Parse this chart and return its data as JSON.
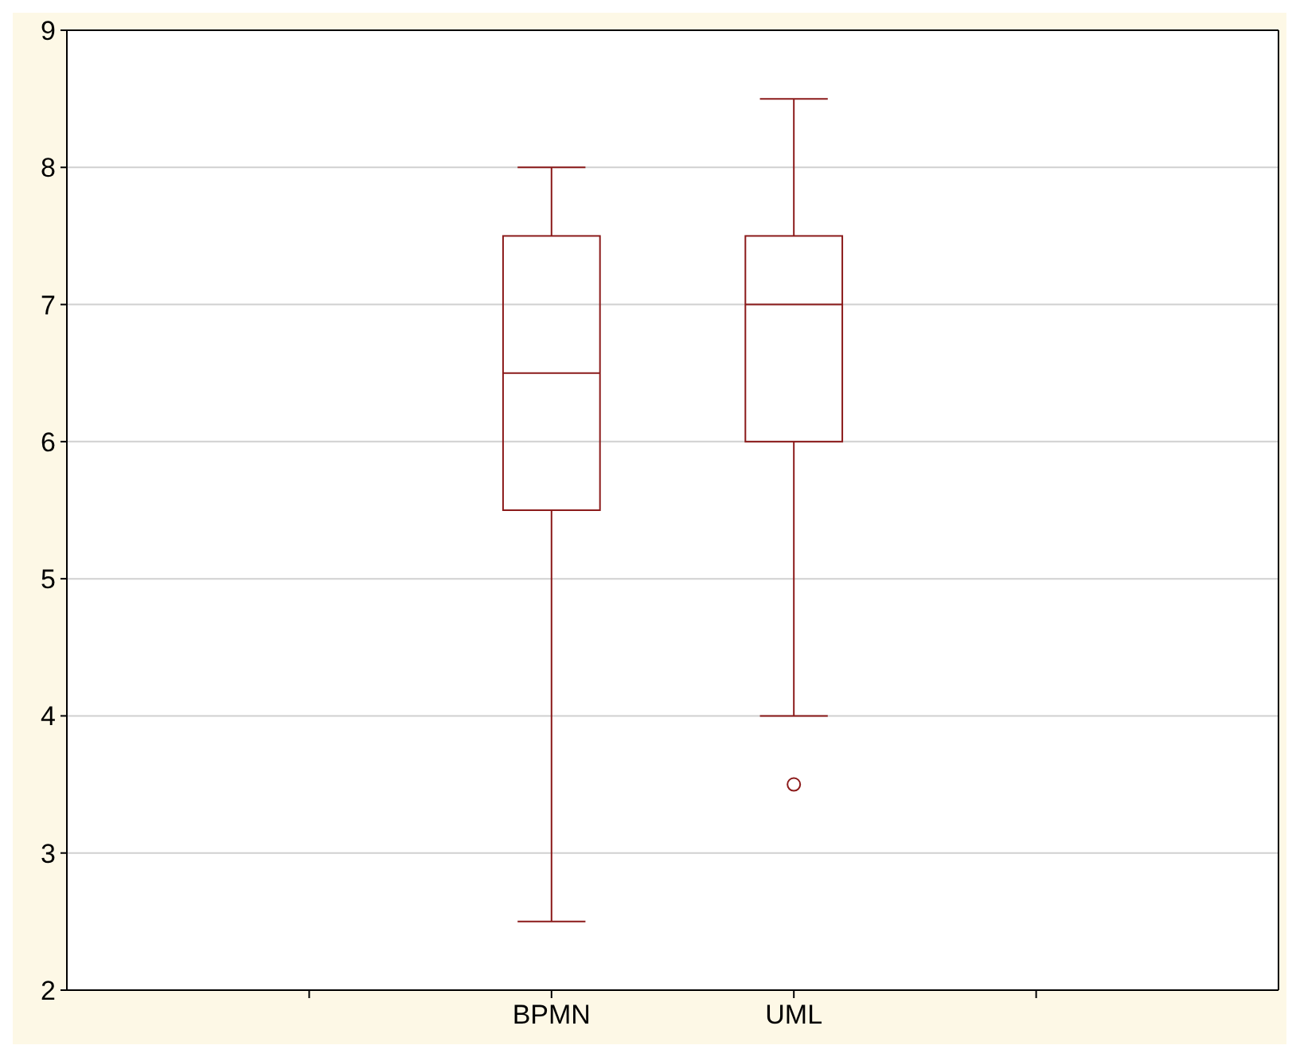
{
  "chart_data": {
    "type": "box",
    "categories": [
      null,
      "BPMN",
      "UML",
      null
    ],
    "boxes": [
      null,
      {
        "low": 2.5,
        "q1": 5.5,
        "median": 6.5,
        "q3": 7.5,
        "high": 8
      },
      {
        "low": 4,
        "q1": 6,
        "median": 7,
        "q3": 7.5,
        "high": 8.5,
        "outliers": [
          3.5
        ]
      },
      null
    ],
    "color": "#8b1a1a",
    "ylim": [
      2,
      9
    ],
    "yticks": [
      2,
      3,
      4,
      5,
      6,
      7,
      8,
      9
    ],
    "grid": "y"
  }
}
